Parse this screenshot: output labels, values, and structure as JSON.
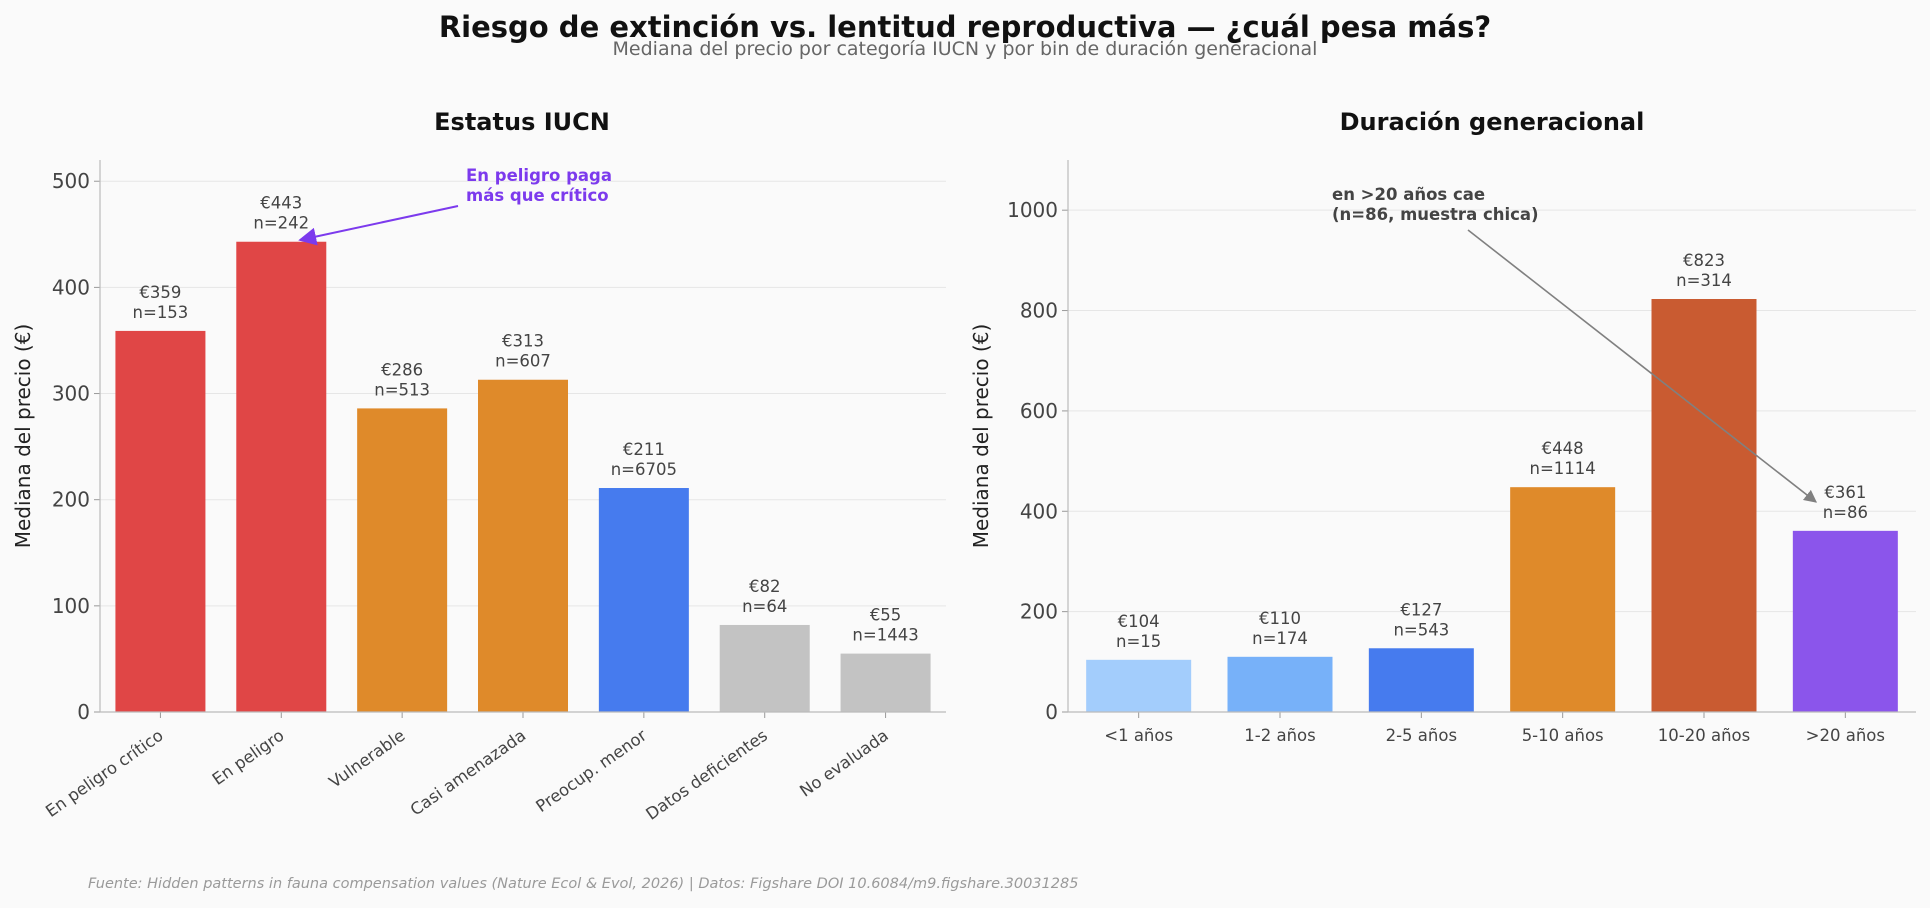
{
  "title": "Riesgo de extinción vs. lentitud reproductiva — ¿cuál pesa más?",
  "subtitle": "Mediana del precio por categoría IUCN y por bin de duración generacional",
  "footer": "Fuente: Hidden patterns in fauna compensation values (Nature Ecol & Evol, 2026) | Datos: Figshare DOI 10.6084/m9.figshare.30031285",
  "chart_data": [
    {
      "type": "bar",
      "title": "Estatus IUCN",
      "xlabel": "",
      "ylabel": "Mediana del precio (€)",
      "ylim": [
        0,
        520
      ],
      "yticks": [
        0,
        100,
        200,
        300,
        400,
        500
      ],
      "grid": true,
      "categories": [
        "En peligro crítico",
        "En peligro",
        "Vulnerable",
        "Casi amenazada",
        "Preocup. menor",
        "Datos deficientes",
        "No evaluada"
      ],
      "values": [
        359,
        443,
        286,
        313,
        211,
        82,
        55
      ],
      "n": [
        153,
        242,
        513,
        607,
        6705,
        64,
        1443
      ],
      "value_labels": [
        "€359",
        "€443",
        "€286",
        "€313",
        "€211",
        "€82",
        "€55"
      ],
      "n_labels": [
        "n=153",
        "n=242",
        "n=513",
        "n=607",
        "n=6705",
        "n=64",
        "n=1443"
      ],
      "colors": [
        "#e04646",
        "#e04646",
        "#df8a2a",
        "#df8a2a",
        "#467bee",
        "#c3c3c3",
        "#c3c3c3"
      ],
      "annotation": {
        "lines": [
          "En peligro paga",
          "más que crítico"
        ],
        "color": "#7c3aed",
        "target_index": 1
      }
    },
    {
      "type": "bar",
      "title": "Duración generacional",
      "xlabel": "",
      "ylabel": "Mediana del precio (€)",
      "ylim": [
        0,
        1100
      ],
      "yticks": [
        0,
        200,
        400,
        600,
        800,
        1000
      ],
      "grid": true,
      "categories": [
        "<1 años",
        "1-2 años",
        "2-5 años",
        "5-10 años",
        "10-20 años",
        ">20 años"
      ],
      "values": [
        104,
        110,
        127,
        448,
        823,
        361
      ],
      "n": [
        15,
        174,
        543,
        1114,
        314,
        86
      ],
      "value_labels": [
        "€104",
        "€110",
        "€127",
        "€448",
        "€823",
        "€361"
      ],
      "n_labels": [
        "n=15",
        "n=174",
        "n=543",
        "n=1114",
        "n=314",
        "n=86"
      ],
      "colors": [
        "#a3cdfc",
        "#77b1f9",
        "#467bee",
        "#df8a2a",
        "#c95b31",
        "#8b55eb"
      ],
      "annotation": {
        "lines": [
          "en >20 años cae",
          "(n=86, muestra chica)"
        ],
        "color": "#444444",
        "target_index": 5
      }
    }
  ]
}
